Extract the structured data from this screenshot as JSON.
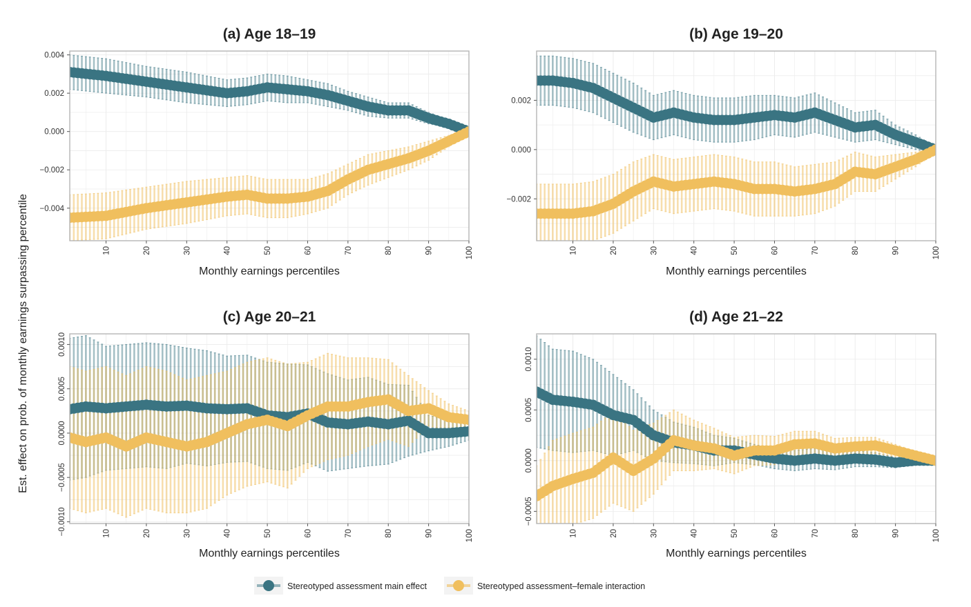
{
  "figure": {
    "ylabel": "Est. effect on prob. of monthly earnings surpassing percentile",
    "colors": {
      "main": "#3a7482",
      "interaction": "#f0bf5e",
      "grid": "#ececec",
      "frame": "#b5b5b5"
    }
  },
  "legend": [
    {
      "label": "Stereotyped assessment main effect",
      "color": "#3a7482"
    },
    {
      "label": "Stereotyped assessment–female interaction",
      "color": "#f0bf5e"
    }
  ],
  "chart_data": [
    {
      "type": "line",
      "panel": "a",
      "title": "(a) Age 18–19",
      "xlabel": "Monthly earnings percentiles",
      "xlim": [
        1,
        100
      ],
      "ylim": [
        -0.0057,
        0.0042
      ],
      "xticks": [
        10,
        20,
        30,
        40,
        50,
        60,
        70,
        80,
        90,
        100
      ],
      "yticks": [
        0.004,
        0.002,
        0.0,
        -0.002,
        -0.004
      ],
      "ytick_labels": [
        "0.004",
        "0.002",
        "0.000",
        "−0.002",
        "−0.004"
      ],
      "ytick_rotated": false,
      "series": [
        {
          "name": "Stereotyped assessment main effect",
          "x": [
            1,
            10,
            20,
            30,
            40,
            45,
            50,
            55,
            60,
            65,
            70,
            75,
            80,
            85,
            90,
            95,
            100
          ],
          "estimate": [
            0.0031,
            0.0029,
            0.0026,
            0.0023,
            0.002,
            0.0021,
            0.0023,
            0.0022,
            0.0021,
            0.0019,
            0.0016,
            0.0013,
            0.0011,
            0.0011,
            0.0007,
            0.0004,
            0.0
          ],
          "ci_halfwidth": [
            0.0009,
            0.0009,
            0.0008,
            0.0008,
            0.0007,
            0.0007,
            0.0007,
            0.0007,
            0.0006,
            0.0006,
            0.0005,
            0.0005,
            0.0004,
            0.0004,
            0.0003,
            0.0002,
            0.0001
          ]
        },
        {
          "name": "Stereotyped assessment–female interaction",
          "x": [
            1,
            10,
            20,
            30,
            40,
            45,
            50,
            55,
            60,
            65,
            70,
            75,
            80,
            85,
            90,
            95,
            100
          ],
          "estimate": [
            -0.0045,
            -0.0044,
            -0.004,
            -0.0037,
            -0.0034,
            -0.0033,
            -0.0035,
            -0.0035,
            -0.0034,
            -0.0031,
            -0.0025,
            -0.002,
            -0.0017,
            -0.0014,
            -0.001,
            -0.0005,
            0.0
          ],
          "ci_halfwidth": [
            0.0012,
            0.0012,
            0.0011,
            0.0011,
            0.001,
            0.001,
            0.001,
            0.001,
            0.0009,
            0.0009,
            0.0008,
            0.0008,
            0.0007,
            0.0006,
            0.0005,
            0.0003,
            0.0001
          ]
        }
      ]
    },
    {
      "type": "line",
      "panel": "b",
      "title": "(b) Age 19–20",
      "xlabel": "Monthly earnings percentiles",
      "xlim": [
        1,
        100
      ],
      "ylim": [
        -0.0037,
        0.004
      ],
      "xticks": [
        10,
        20,
        30,
        40,
        50,
        60,
        70,
        80,
        90,
        100
      ],
      "yticks": [
        0.002,
        0.0,
        -0.002
      ],
      "ytick_labels": [
        "0.002",
        "0.000",
        "−0.002"
      ],
      "ytick_rotated": false,
      "series": [
        {
          "name": "Stereotyped assessment main effect",
          "x": [
            1,
            5,
            10,
            15,
            20,
            25,
            30,
            35,
            40,
            45,
            50,
            55,
            60,
            65,
            70,
            75,
            80,
            85,
            90,
            95,
            100
          ],
          "estimate": [
            0.0028,
            0.0028,
            0.0027,
            0.0025,
            0.0021,
            0.0017,
            0.0013,
            0.0015,
            0.0013,
            0.0012,
            0.0012,
            0.0013,
            0.0014,
            0.0013,
            0.0015,
            0.0012,
            0.0009,
            0.001,
            0.0006,
            0.0003,
            0.0
          ],
          "ci_halfwidth": [
            0.001,
            0.001,
            0.001,
            0.001,
            0.001,
            0.001,
            0.0009,
            0.0009,
            0.0009,
            0.0009,
            0.0009,
            0.0009,
            0.0008,
            0.0008,
            0.0008,
            0.0007,
            0.0006,
            0.0006,
            0.0004,
            0.0003,
            0.0001
          ]
        },
        {
          "name": "Stereotyped assessment–female interaction",
          "x": [
            1,
            5,
            10,
            15,
            20,
            25,
            30,
            35,
            40,
            45,
            50,
            55,
            60,
            65,
            70,
            75,
            80,
            85,
            90,
            95,
            100
          ],
          "estimate": [
            -0.0026,
            -0.0026,
            -0.0026,
            -0.0025,
            -0.0022,
            -0.0017,
            -0.0013,
            -0.0015,
            -0.0014,
            -0.0013,
            -0.0014,
            -0.0016,
            -0.0016,
            -0.0017,
            -0.0016,
            -0.0014,
            -0.0009,
            -0.001,
            -0.0007,
            -0.0004,
            0.0
          ],
          "ci_halfwidth": [
            0.0012,
            0.0012,
            0.0012,
            0.0012,
            0.0012,
            0.0012,
            0.0011,
            0.0011,
            0.0011,
            0.0011,
            0.0011,
            0.0011,
            0.0011,
            0.001,
            0.001,
            0.0009,
            0.0008,
            0.0007,
            0.0005,
            0.0003,
            0.0001
          ]
        }
      ]
    },
    {
      "type": "line",
      "panel": "c",
      "title": "(c) Age 20–21",
      "xlabel": "Monthly earnings percentiles",
      "xlim": [
        1,
        100
      ],
      "ylim": [
        -0.00102,
        0.00112
      ],
      "xticks": [
        10,
        20,
        30,
        40,
        50,
        60,
        70,
        80,
        90,
        100
      ],
      "yticks": [
        0.001,
        0.0005,
        0.0,
        -0.0005,
        -0.001
      ],
      "ytick_labels": [
        "0.0010",
        "0.0005",
        "0.0000",
        "−0.0005",
        "−0.0010"
      ],
      "ytick_rotated": true,
      "series": [
        {
          "name": "Stereotyped assessment main effect",
          "x": [
            1,
            5,
            10,
            15,
            20,
            25,
            30,
            35,
            40,
            45,
            50,
            55,
            60,
            65,
            70,
            75,
            80,
            85,
            90,
            95,
            100
          ],
          "estimate": [
            0.00027,
            0.0003,
            0.00028,
            0.0003,
            0.00032,
            0.0003,
            0.00031,
            0.00028,
            0.00027,
            0.00028,
            0.0002,
            0.00018,
            0.00022,
            0.00012,
            0.0001,
            0.00013,
            0.0001,
            0.00014,
            0.0,
            0.0,
            2e-05
          ],
          "ci_halfwidth": [
            0.0008,
            0.0008,
            0.0007,
            0.0007,
            0.0007,
            0.0007,
            0.00065,
            0.00065,
            0.0006,
            0.0006,
            0.0006,
            0.0006,
            0.00055,
            0.00055,
            0.0005,
            0.0005,
            0.00045,
            0.0004,
            0.0002,
            0.00015,
            0.0001
          ]
        },
        {
          "name": "Stereotyped assessment–female interaction",
          "x": [
            1,
            5,
            10,
            15,
            20,
            25,
            30,
            35,
            40,
            45,
            50,
            55,
            60,
            65,
            70,
            75,
            80,
            85,
            90,
            95,
            100
          ],
          "estimate": [
            -5e-05,
            -0.0001,
            -5e-05,
            -0.00015,
            -5e-05,
            -0.0001,
            -0.00015,
            -0.0001,
            0.0,
            0.0001,
            0.00015,
            8e-05,
            0.0002,
            0.0003,
            0.0003,
            0.00035,
            0.00038,
            0.00025,
            0.00028,
            0.00018,
            0.00015
          ],
          "ci_halfwidth": [
            0.0008,
            0.0008,
            0.0008,
            0.0008,
            0.0008,
            0.0008,
            0.00075,
            0.00075,
            0.0007,
            0.0007,
            0.0007,
            0.0007,
            0.0006,
            0.0006,
            0.00055,
            0.0005,
            0.00045,
            0.0004,
            0.0002,
            0.00015,
            0.0001
          ]
        }
      ]
    },
    {
      "type": "line",
      "panel": "d",
      "title": "(d) Age 21–22",
      "xlabel": "Monthly earnings percentiles",
      "xlim": [
        1,
        100
      ],
      "ylim": [
        -0.00062,
        0.00125
      ],
      "xticks": [
        10,
        20,
        30,
        40,
        50,
        60,
        70,
        80,
        90,
        100
      ],
      "yticks": [
        0.001,
        0.0005,
        0.0,
        -0.0005
      ],
      "ytick_labels": [
        "0.0010",
        "0.0005",
        "0.0000",
        "−0.0005"
      ],
      "ytick_rotated": true,
      "series": [
        {
          "name": "Stereotyped assessment main effect",
          "x": [
            1,
            5,
            10,
            15,
            20,
            25,
            30,
            35,
            40,
            45,
            50,
            55,
            60,
            65,
            70,
            75,
            80,
            85,
            90,
            95,
            100
          ],
          "estimate": [
            0.00068,
            0.0006,
            0.00058,
            0.00055,
            0.00045,
            0.0004,
            0.00025,
            0.00018,
            0.00015,
            0.0001,
            0.0001,
            6e-05,
            2e-05,
            0.0,
            2e-05,
            0.0,
            2e-05,
            1e-05,
            -2e-05,
            0.0,
            0.0
          ],
          "ci_halfwidth": [
            0.00055,
            0.0005,
            0.0005,
            0.00045,
            0.0004,
            0.0003,
            0.00025,
            0.0002,
            0.00018,
            0.00015,
            0.00012,
            0.0001,
            0.0001,
            0.0001,
            0.0001,
            9e-05,
            8e-05,
            7e-05,
            5e-05,
            3e-05,
            1e-05
          ]
        },
        {
          "name": "Stereotyped assessment–female interaction",
          "x": [
            1,
            5,
            10,
            15,
            20,
            25,
            30,
            35,
            40,
            45,
            50,
            55,
            60,
            65,
            70,
            75,
            80,
            85,
            90,
            95,
            100
          ],
          "estimate": [
            -0.00035,
            -0.00025,
            -0.00018,
            -0.00012,
            3e-05,
            -0.0001,
            2e-05,
            0.0002,
            0.00015,
            0.00012,
            5e-05,
            0.0001,
            0.0001,
            0.00016,
            0.00017,
            0.00012,
            0.00014,
            0.00015,
            0.0001,
            5e-05,
            0.0
          ],
          "ci_halfwidth": [
            0.0003,
            0.00045,
            0.00045,
            0.00045,
            0.00045,
            0.0004,
            0.00035,
            0.0003,
            0.00025,
            0.0002,
            0.00018,
            0.00015,
            0.00014,
            0.00013,
            0.00012,
            0.0001,
            9e-05,
            8e-05,
            6e-05,
            4e-05,
            1e-05
          ]
        }
      ]
    }
  ]
}
